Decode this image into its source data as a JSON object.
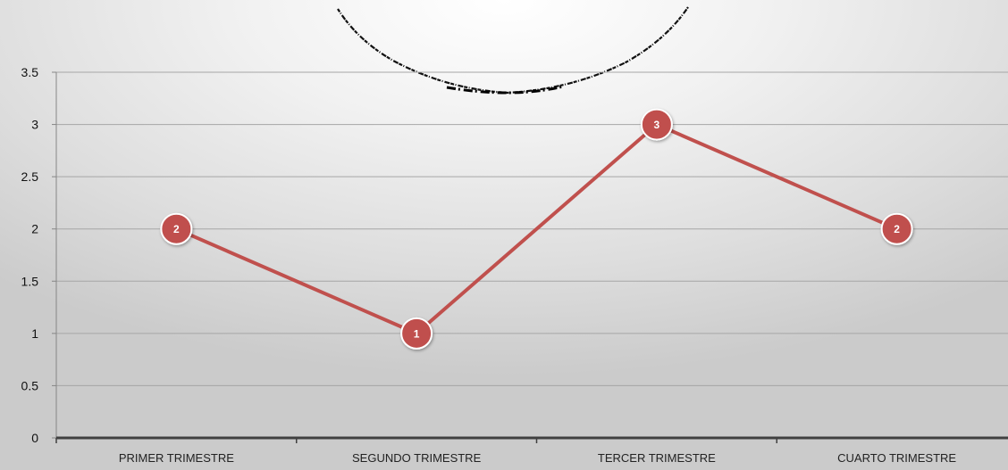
{
  "chart_data": {
    "type": "line",
    "categories": [
      "PRIMER TRIMESTRE",
      "SEGUNDO TRIMESTRE",
      "TERCER TRIMESTRE",
      "CUARTO TRIMESTRE"
    ],
    "series": [
      {
        "values": [
          2,
          1,
          3,
          2
        ],
        "color": "#c0504d"
      }
    ],
    "y_ticks": [
      "0",
      "0.5",
      "1",
      "1.5",
      "2",
      "2.5",
      "3",
      "3.5"
    ],
    "ylim": [
      0,
      3.5
    ],
    "grid": true,
    "legend": "none",
    "title": "",
    "xlabel": "",
    "ylabel": ""
  }
}
